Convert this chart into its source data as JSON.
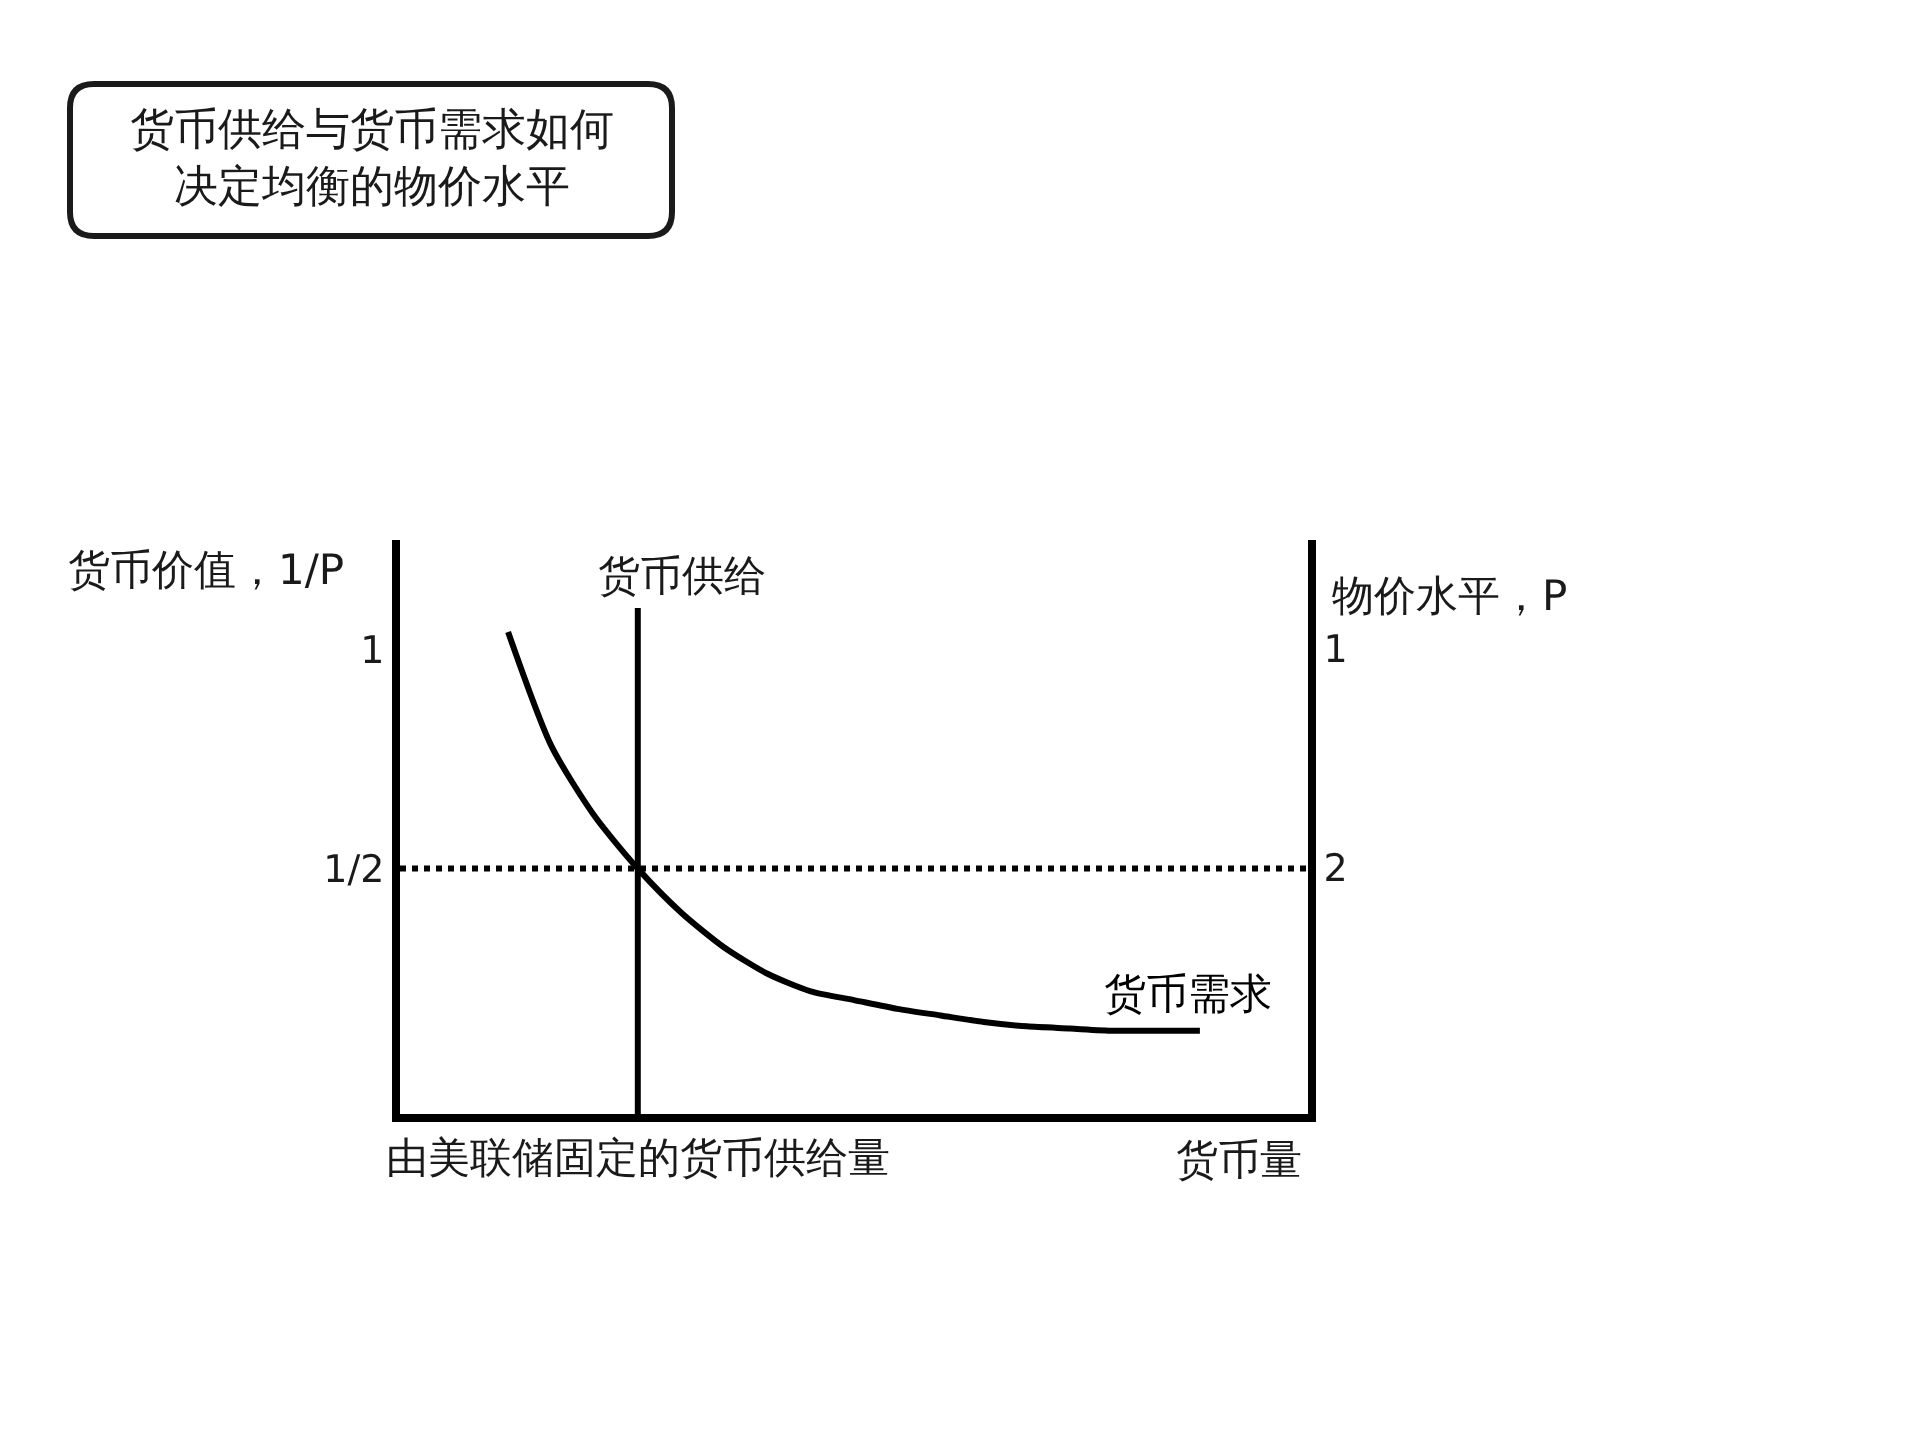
{
  "chart_data": {
    "type": "line",
    "title": "货币供给与货币需求如何决定均衡的物价水平",
    "ylabel": "货币价值，1/P",
    "y2label": "物价水平，P",
    "xlabel": "货币量",
    "categories": [
      null,
      null,
      null,
      null,
      null,
      "由美联储固定的货币供给量",
      null,
      null,
      null,
      null,
      null,
      null,
      null,
      null,
      null,
      null,
      null,
      null,
      null,
      null,
      null
    ],
    "series": [
      {
        "name": "货币需求",
        "color": "#000000",
        "values": [
          null,
          null,
          1.04,
          0.78,
          0.62,
          0.5,
          0.4,
          0.32,
          0.26,
          0.22,
          0.2,
          0.18,
          0.165,
          0.15,
          0.14,
          0.135,
          0.13,
          0.13,
          0.13,
          null,
          null
        ]
      }
    ],
    "ylim": [
      -0.06,
      1.25
    ],
    "yticks": [
      1,
      {
        "value": 0.5,
        "label": "1/2"
      }
    ],
    "y2lim": [
      3.13,
      0.5
    ],
    "y2ticks": [
      1,
      2
    ],
    "ref_lines": [
      {
        "axis": "x",
        "value": "由美联储固定的货币供给量",
        "label": "货币供给",
        "color": "#000000",
        "line_style": "solid"
      },
      {
        "axis": "y",
        "value": 0.5,
        "color": "#000000",
        "line_style": "dotted"
      }
    ]
  }
}
